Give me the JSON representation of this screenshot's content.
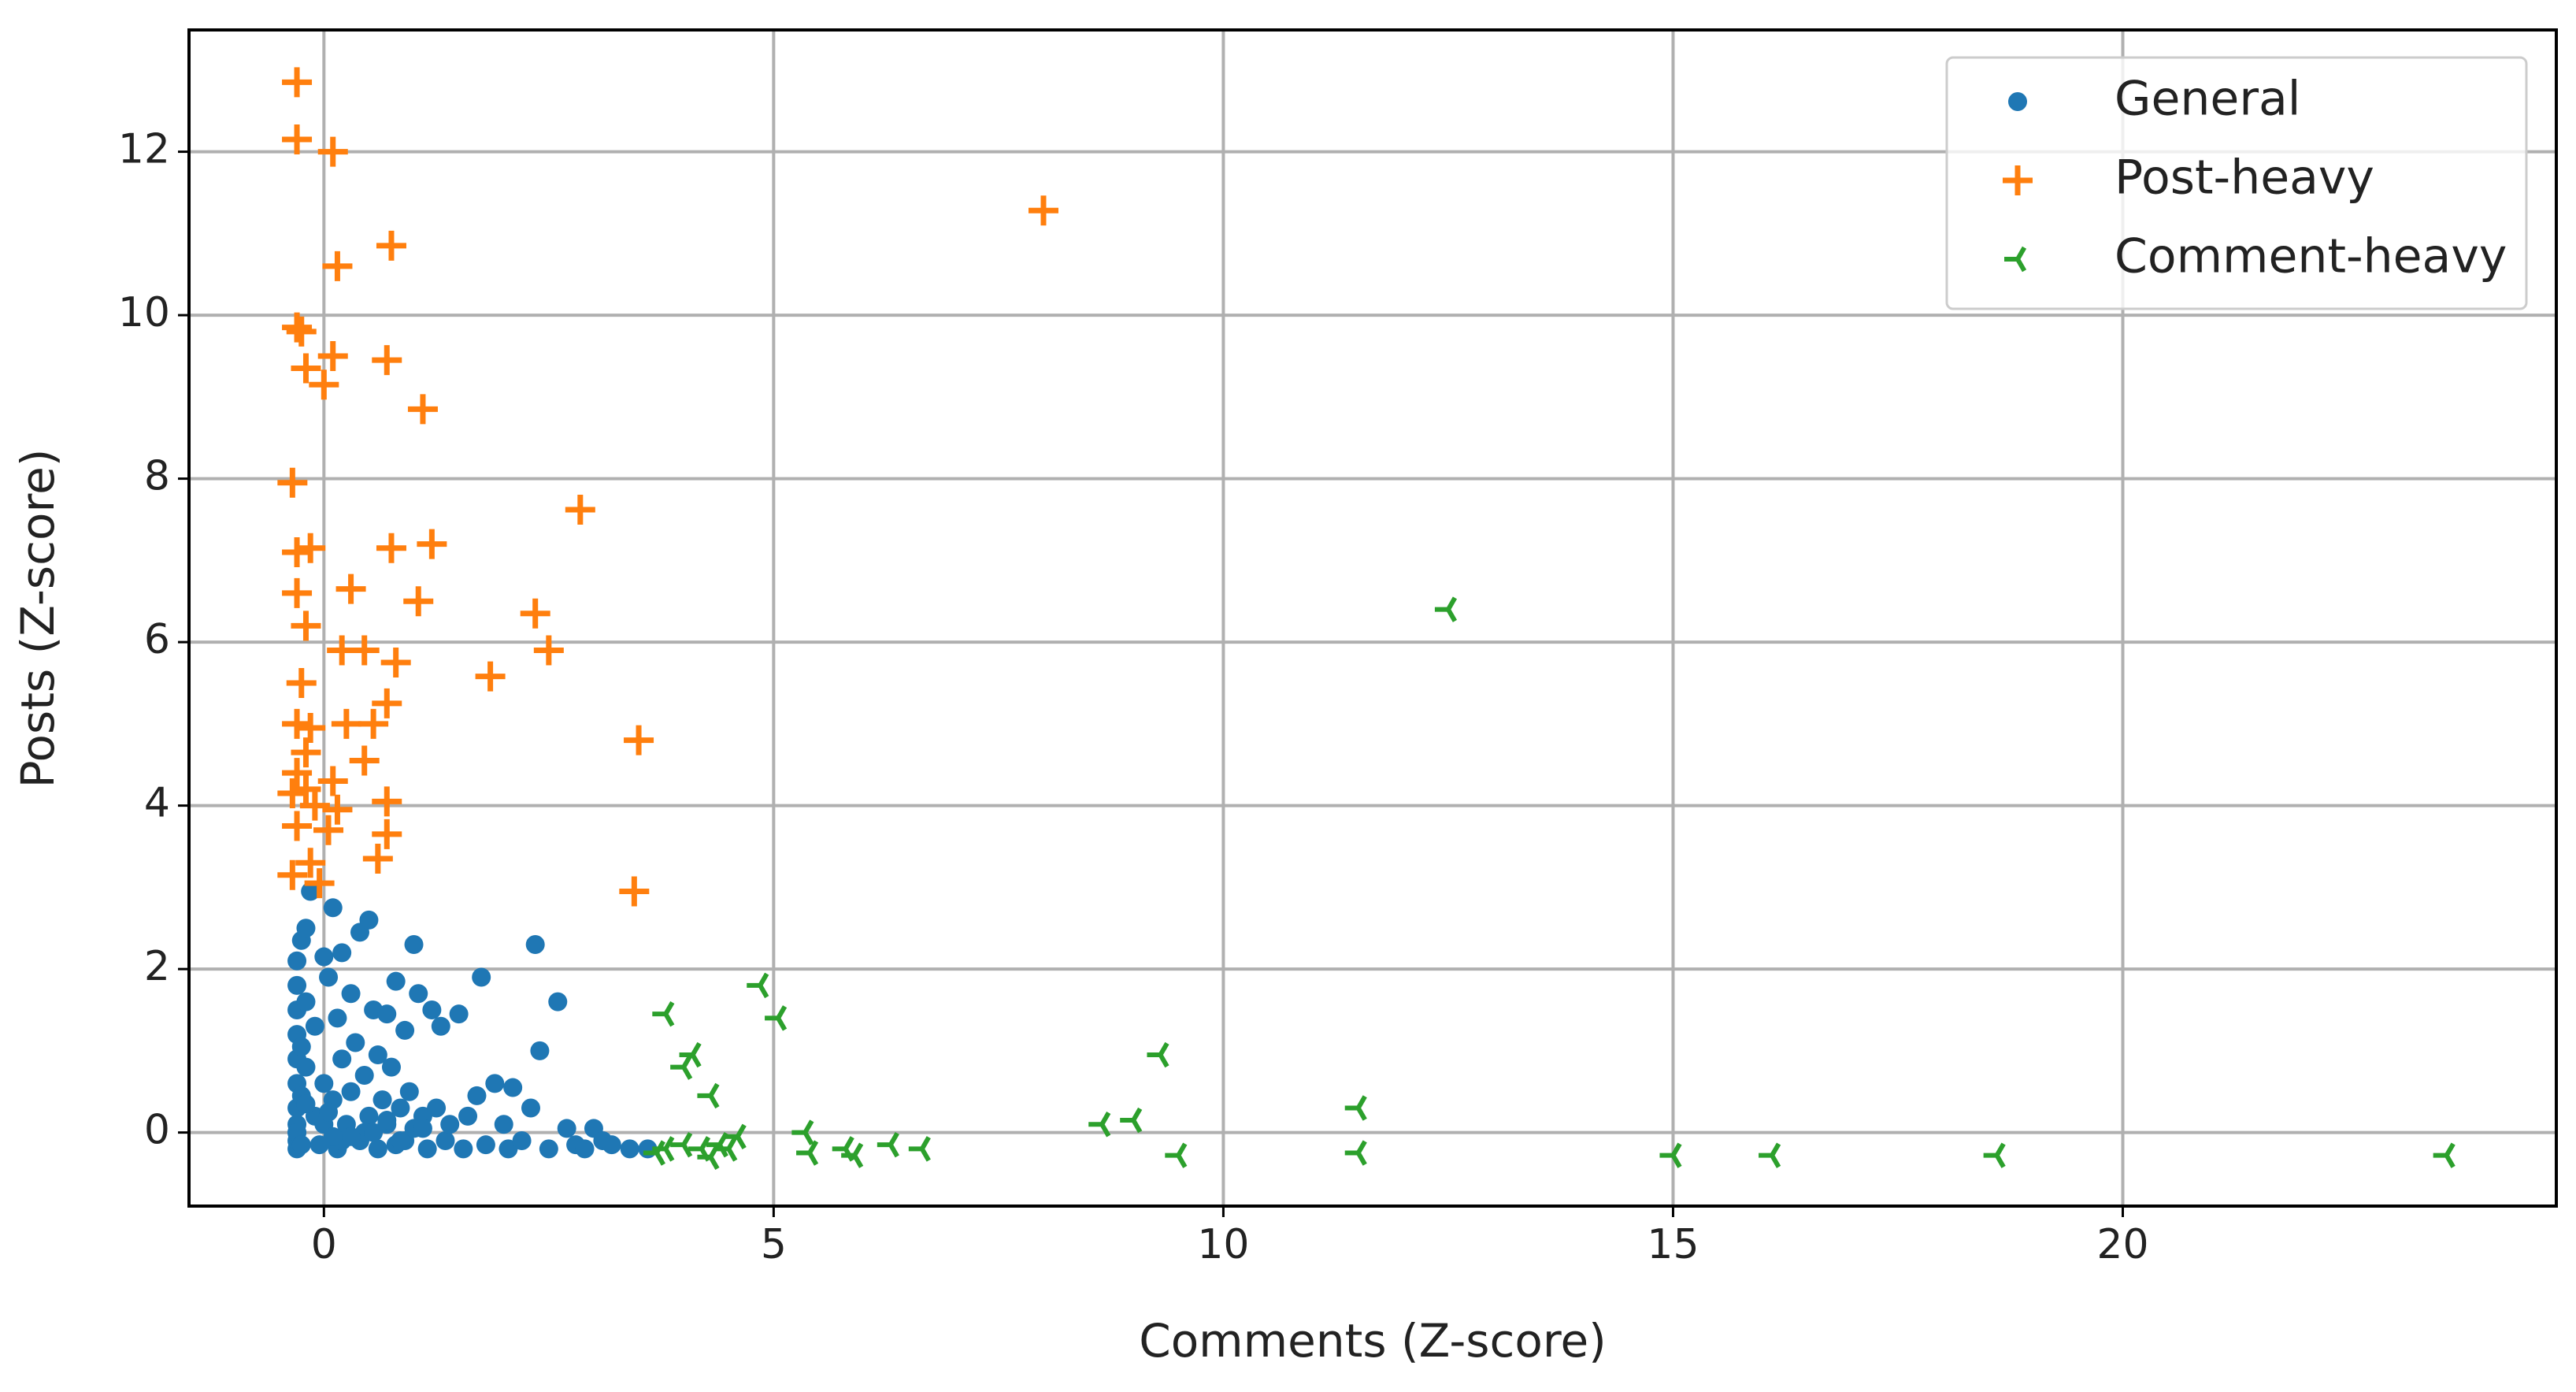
{
  "chart_data": {
    "type": "scatter",
    "x_label": "Comments (Z-score)",
    "y_label": "Posts (Z-score)",
    "xlim": [
      -1.5,
      24.82
    ],
    "ylim": [
      -0.9,
      13.49
    ],
    "xticks": [
      0,
      5,
      10,
      15,
      20
    ],
    "yticks": [
      0,
      2,
      4,
      6,
      8,
      10,
      12
    ],
    "grid": true,
    "legend": "upper right",
    "series": [
      {
        "name": "General",
        "color": "#1f77b4",
        "marker": "o",
        "x": [
          -0.3,
          -0.3,
          -0.3,
          -0.3,
          -0.3,
          -0.3,
          -0.3,
          -0.3,
          -0.3,
          -0.3,
          -0.3,
          -0.25,
          -0.25,
          -0.25,
          -0.2,
          -0.2,
          -0.2,
          -0.15,
          -0.1,
          -0.1,
          -0.05,
          0,
          0,
          0.05,
          0.1,
          0.1,
          0.15,
          0.15,
          0.2,
          0.2,
          0.25,
          0.3,
          0.3,
          0.35,
          0.4,
          0.4,
          0.45,
          0.5,
          0.5,
          0.55,
          0.6,
          0.6,
          0.65,
          0.7,
          0.7,
          0.75,
          0.8,
          0.8,
          0.85,
          0.9,
          0.9,
          0.95,
          1.0,
          1.0,
          1.05,
          1.1,
          1.15,
          1.2,
          1.25,
          1.3,
          1.35,
          1.4,
          1.5,
          1.55,
          1.6,
          1.7,
          1.75,
          1.8,
          1.9,
          2.0,
          2.05,
          2.1,
          2.2,
          2.3,
          2.35,
          2.4,
          2.5,
          2.6,
          2.7,
          2.8,
          2.9,
          3.0,
          3.1,
          3.2,
          3.4,
          3.6,
          -0.3,
          0.0,
          0.2,
          0.45,
          0.7,
          -0.25,
          0.05,
          0.3,
          0.55,
          0.85,
          1.1,
          -0.2,
          0.1
        ],
        "y": [
          -0.2,
          0,
          0.3,
          0.6,
          0.9,
          1.2,
          1.5,
          1.8,
          2.1,
          0.1,
          -0.1,
          0.45,
          1.05,
          2.35,
          0.8,
          1.6,
          2.5,
          2.95,
          0.2,
          1.3,
          -0.15,
          2.15,
          0.6,
          1.9,
          2.75,
          0.4,
          1.4,
          -0.2,
          0.9,
          2.2,
          0.1,
          1.7,
          0.5,
          1.1,
          2.45,
          -0.1,
          0.7,
          2.6,
          0.2,
          1.5,
          0.95,
          -0.2,
          0.4,
          1.45,
          0.1,
          0.8,
          1.85,
          -0.15,
          0.3,
          1.25,
          -0.1,
          0.5,
          2.3,
          0.05,
          1.7,
          0.2,
          -0.2,
          1.5,
          0.3,
          1.3,
          -0.1,
          0.1,
          1.45,
          -0.2,
          0.2,
          0.45,
          1.9,
          -0.15,
          0.6,
          0.1,
          -0.2,
          0.55,
          -0.1,
          0.3,
          2.3,
          1.0,
          -0.2,
          1.6,
          0.05,
          -0.15,
          -0.2,
          0.05,
          -0.1,
          -0.15,
          -0.2,
          -0.2,
          0.0,
          0.1,
          -0.1,
          0.0,
          0.15,
          -0.15,
          0.25,
          -0.05,
          0.0,
          -0.1,
          0.05,
          0.35,
          -0.05
        ]
      },
      {
        "name": "Post-heavy",
        "color": "#ff7f0e",
        "marker": "+",
        "x": [
          -0.3,
          -0.3,
          0.1,
          0.15,
          0.75,
          8,
          -0.3,
          -0.25,
          0.1,
          0,
          -0.2,
          0.7,
          1.1,
          -0.35,
          2.85,
          -0.3,
          -0.15,
          0.75,
          1.2,
          -0.3,
          -0.2,
          0.3,
          1.05,
          2.35,
          0.2,
          0.45,
          0.8,
          1.85,
          2.5,
          -0.25,
          -0.3,
          -0.15,
          0.25,
          0.55,
          0.7,
          3.5,
          -0.2,
          -0.3,
          0.45,
          -0.35,
          -0.2,
          0.1,
          0.7,
          -0.3,
          0.05,
          0.7,
          0.6,
          -0.35,
          -0.15,
          -0.05,
          3.45,
          -0.1,
          0.15
        ],
        "y": [
          12.85,
          12.15,
          12,
          10.6,
          10.85,
          11.28,
          9.85,
          9.8,
          9.5,
          9.15,
          9.35,
          9.45,
          8.85,
          7.95,
          7.62,
          7.1,
          7.15,
          7.15,
          7.2,
          6.6,
          6.2,
          6.65,
          6.5,
          6.35,
          5.9,
          5.9,
          5.75,
          5.58,
          5.9,
          5.5,
          5,
          4.95,
          5,
          5,
          5.25,
          4.8,
          4.65,
          4.4,
          4.55,
          4.15,
          4.2,
          4.3,
          4.05,
          3.75,
          3.7,
          3.65,
          3.35,
          3.15,
          3.3,
          3.05,
          2.95,
          4.0,
          3.95
        ]
      },
      {
        "name": "Comment-heavy",
        "color": "#2ca02c",
        "marker": "tri_left",
        "x": [
          12.5,
          4.85,
          5.05,
          3.8,
          4.1,
          4.0,
          9.3,
          4.3,
          11.5,
          8.65,
          9.0,
          5.35,
          4.6,
          3.8,
          4.0,
          4.2,
          4.4,
          4.5,
          5.4,
          5.8,
          5.9,
          6.3,
          6.65,
          9.5,
          11.5,
          15,
          16.1,
          18.6,
          23.6,
          3.7,
          4.3
        ],
        "y": [
          6.4,
          1.8,
          1.4,
          1.45,
          0.95,
          0.8,
          0.95,
          0.45,
          0.3,
          0.1,
          0.15,
          0,
          -0.05,
          -0.2,
          -0.15,
          -0.2,
          -0.15,
          -0.2,
          -0.25,
          -0.2,
          -0.28,
          -0.15,
          -0.2,
          -0.28,
          -0.25,
          -0.28,
          -0.28,
          -0.28,
          -0.28,
          -0.25,
          -0.3
        ]
      }
    ]
  }
}
